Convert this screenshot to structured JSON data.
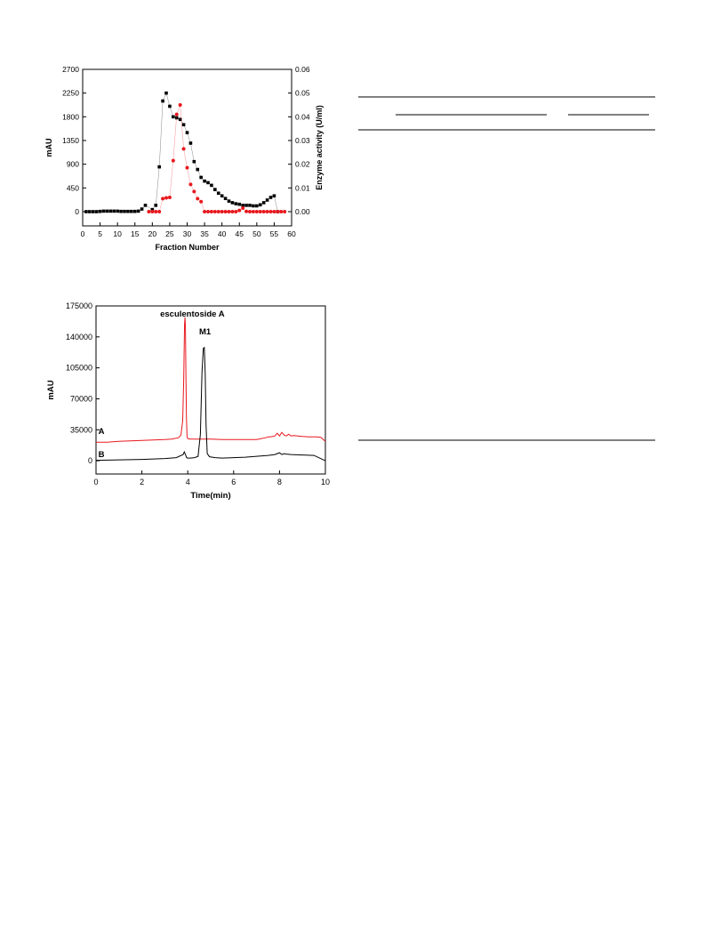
{
  "chart_data": [
    {
      "type": "scatter",
      "title": "",
      "xlabel": "Fraction Number",
      "ylabel": "mAU",
      "y2label": "Enzyme activity (U/ml)",
      "xlim": [
        0,
        60
      ],
      "ylim": [
        -270,
        2700
      ],
      "y2lim": [
        -0.006,
        0.06
      ],
      "xticks": [
        0,
        5,
        10,
        15,
        20,
        25,
        30,
        35,
        40,
        45,
        50,
        55,
        60
      ],
      "yticks": [
        0,
        450,
        900,
        1350,
        1800,
        2250,
        2700
      ],
      "y2ticks": [
        "0.00",
        "0.01",
        "0.02",
        "0.03",
        "0.04",
        "0.05",
        "0.06"
      ],
      "series": [
        {
          "axis": "left",
          "color": "#000000",
          "marker": "square",
          "x": [
            1,
            2,
            3,
            4,
            5,
            6,
            7,
            8,
            9,
            10,
            11,
            12,
            13,
            14,
            15,
            16,
            17,
            18,
            20,
            21,
            22,
            23,
            24,
            25,
            26,
            27,
            28,
            29,
            30,
            31,
            32,
            33,
            34,
            35,
            36,
            37,
            38,
            39,
            40,
            41,
            42,
            43,
            44,
            45,
            46,
            47,
            48,
            49,
            50,
            51,
            52,
            53,
            54,
            55,
            56
          ],
          "y": [
            0,
            0,
            0,
            0,
            5,
            10,
            10,
            10,
            10,
            10,
            5,
            5,
            5,
            5,
            5,
            10,
            50,
            120,
            40,
            120,
            850,
            2100,
            2250,
            2000,
            1800,
            1780,
            1750,
            1650,
            1500,
            1300,
            950,
            800,
            650,
            580,
            550,
            500,
            420,
            350,
            300,
            250,
            200,
            170,
            150,
            140,
            120,
            120,
            120,
            110,
            110,
            130,
            170,
            220,
            270,
            300,
            0
          ],
          "y_note": ""
        },
        {
          "axis": "right",
          "color": "#e8181e",
          "marker": "circle",
          "x": [
            19,
            20,
            21,
            22,
            23,
            24,
            25,
            26,
            27,
            28,
            29,
            30,
            31,
            32,
            33,
            34,
            35,
            36,
            37,
            38,
            39,
            40,
            41,
            42,
            43,
            44,
            45,
            46,
            47,
            48,
            49,
            50,
            51,
            52,
            53,
            54,
            55,
            56,
            57,
            58
          ],
          "y": [
            0,
            0,
            0,
            0,
            0.0055,
            0.0058,
            0.006,
            0.0215,
            0.041,
            0.045,
            0.0265,
            0.0185,
            0.0115,
            0.0085,
            0.0055,
            0.0042,
            0,
            0,
            0,
            0,
            0,
            0,
            0,
            0,
            0,
            0,
            0.0005,
            0.0015,
            0.0001,
            0,
            0,
            0,
            0,
            0,
            0,
            0,
            0,
            0,
            0,
            0
          ]
        }
      ]
    },
    {
      "type": "line",
      "title": "",
      "xlabel": "Time(min)",
      "ylabel": "mAU",
      "xlim": [
        0,
        10
      ],
      "ylim": [
        -15000,
        175000
      ],
      "xticks": [
        0,
        2,
        4,
        6,
        8,
        10
      ],
      "yticks": [
        0,
        35000,
        70000,
        105000,
        140000,
        175000
      ],
      "annotations": [
        {
          "text": "esculentoside A",
          "x": 4.2,
          "y": 163000
        },
        {
          "text": "M1",
          "x": 4.75,
          "y": 143000
        }
      ],
      "series": [
        {
          "name": "A",
          "color": "#e8181e",
          "label_x": 0.1,
          "label_y": 30000,
          "x": [
            0,
            0.5,
            1,
            1.5,
            2,
            2.5,
            3,
            3.3,
            3.6,
            3.7,
            3.78,
            3.82,
            3.86,
            3.88,
            3.9,
            3.92,
            3.94,
            3.97,
            4.0,
            4.1,
            4.5,
            5,
            5.5,
            6,
            6.5,
            7,
            7.4,
            7.5,
            7.6,
            7.8,
            7.9,
            8.0,
            8.1,
            8.2,
            8.3,
            8.4,
            8.5,
            8.6,
            8.8,
            9,
            9.3,
            9.6,
            9.8,
            10
          ],
          "y": [
            21000,
            21000,
            22000,
            22500,
            23000,
            23500,
            24000,
            24500,
            26000,
            29000,
            45000,
            90000,
            155000,
            162000,
            150000,
            100000,
            50000,
            27000,
            25000,
            24500,
            24500,
            24500,
            24000,
            24000,
            24000,
            24000,
            26000,
            27000,
            27000,
            28000,
            31000,
            28000,
            32000,
            29000,
            28000,
            30000,
            28000,
            28500,
            28000,
            27500,
            27000,
            27000,
            26500,
            22000
          ]
        },
        {
          "name": "B",
          "color": "#000000",
          "label_x": 0.1,
          "label_y": 4000,
          "x": [
            0,
            0.5,
            1,
            1.5,
            2,
            2.5,
            3,
            3.5,
            3.8,
            3.85,
            3.9,
            3.95,
            4.0,
            4.1,
            4.3,
            4.45,
            4.55,
            4.62,
            4.68,
            4.72,
            4.76,
            4.8,
            4.85,
            4.95,
            5.2,
            5.5,
            6,
            6.5,
            7,
            7.5,
            7.8,
            8.0,
            8.1,
            8.2,
            8.3,
            8.5,
            9,
            9.5,
            10
          ],
          "y": [
            500,
            700,
            1000,
            1200,
            1500,
            2000,
            2500,
            3500,
            7000,
            10000,
            7000,
            3500,
            3000,
            3000,
            3500,
            5000,
            30000,
            100000,
            127000,
            128000,
            100000,
            40000,
            8000,
            4500,
            3500,
            3000,
            3500,
            4000,
            5000,
            6000,
            7000,
            9000,
            7000,
            8000,
            7500,
            7000,
            6500,
            6000,
            0
          ]
        }
      ]
    }
  ]
}
